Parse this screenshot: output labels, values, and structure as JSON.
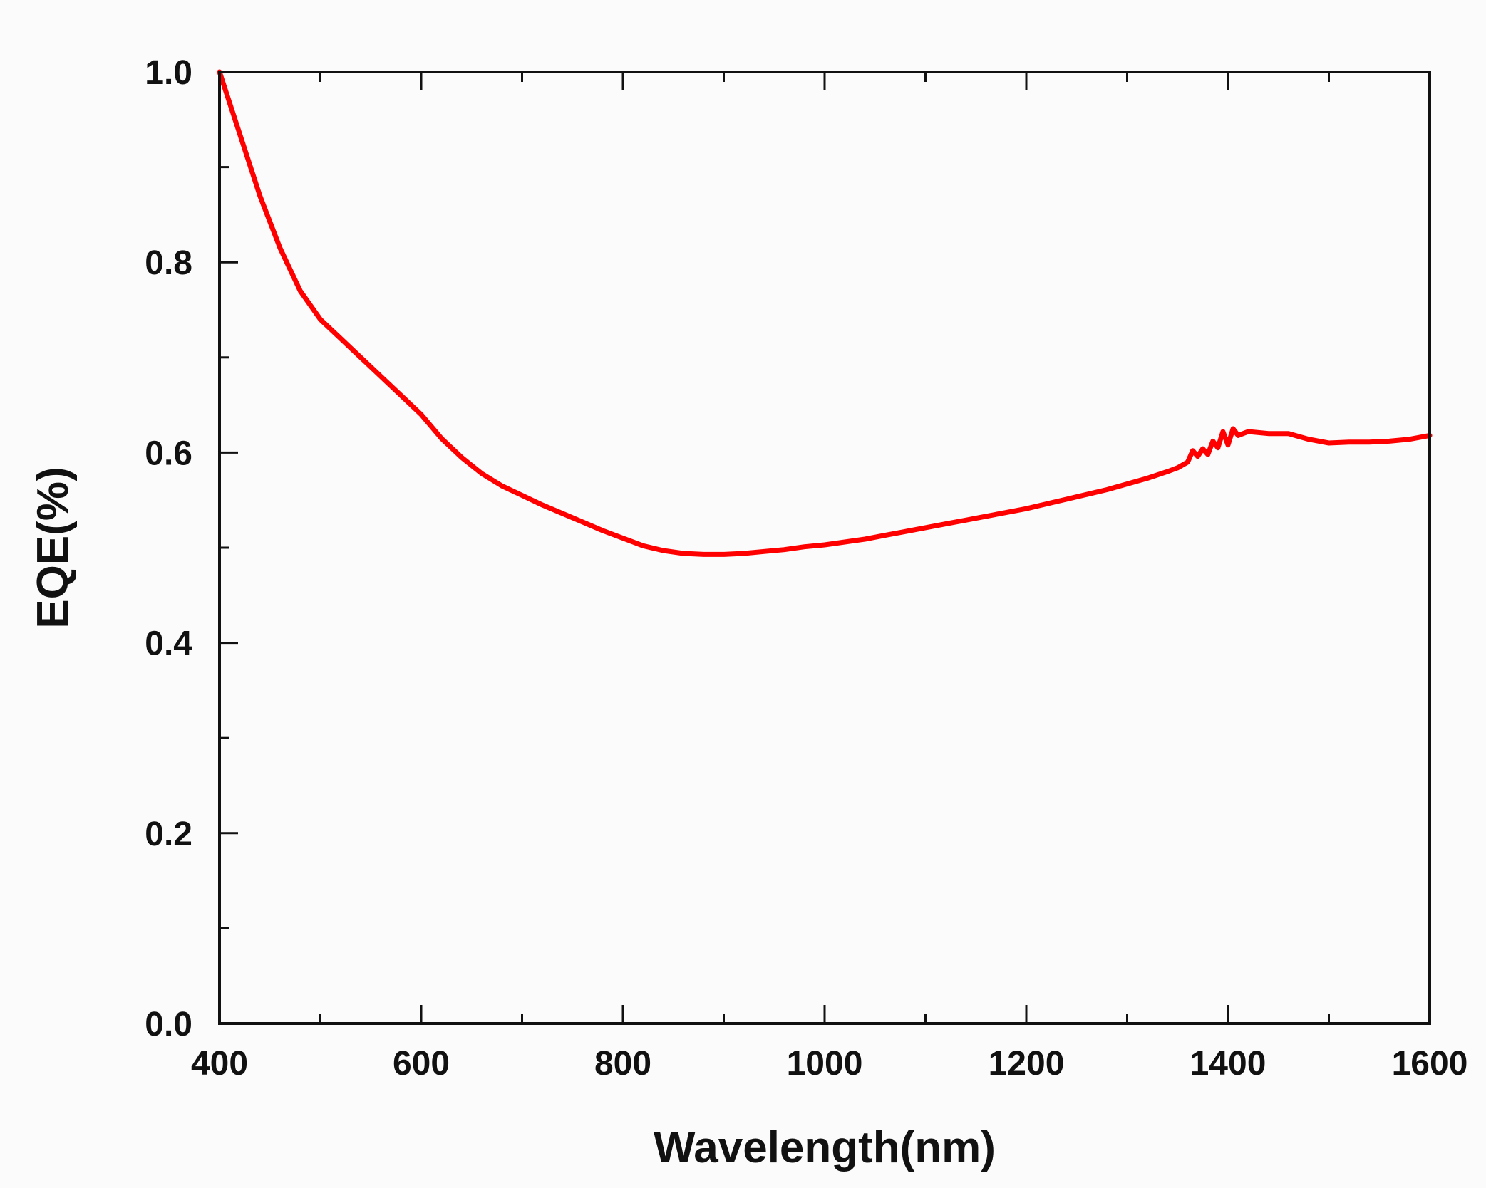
{
  "chart_data": {
    "type": "line",
    "title": "",
    "xlabel": "Wavelength(nm)",
    "ylabel": "EQE(%)",
    "xlim": [
      400,
      1600
    ],
    "ylim": [
      0.0,
      1.0
    ],
    "x_ticks": [
      400,
      600,
      800,
      1000,
      1200,
      1400,
      1600
    ],
    "x_tick_labels": [
      "400",
      "600",
      "800",
      "1000",
      "1200",
      "1400",
      "1600"
    ],
    "y_ticks": [
      0.0,
      0.2,
      0.4,
      0.6,
      0.8,
      1.0
    ],
    "y_tick_labels": [
      "0.0",
      "0.2",
      "0.4",
      "0.6",
      "0.8",
      "1.0"
    ],
    "x_minor_step": 100,
    "y_minor_step": 0.1,
    "grid": false,
    "legend": "none",
    "series": [
      {
        "color": "#ff0000",
        "x": [
          400,
          420,
          440,
          460,
          480,
          500,
          520,
          540,
          560,
          580,
          600,
          620,
          640,
          660,
          680,
          700,
          720,
          740,
          760,
          780,
          800,
          820,
          840,
          860,
          880,
          900,
          920,
          940,
          960,
          980,
          1000,
          1020,
          1040,
          1060,
          1080,
          1100,
          1120,
          1140,
          1160,
          1180,
          1200,
          1220,
          1240,
          1260,
          1280,
          1300,
          1320,
          1340,
          1350,
          1360,
          1365,
          1370,
          1375,
          1380,
          1385,
          1390,
          1395,
          1400,
          1405,
          1410,
          1420,
          1440,
          1460,
          1480,
          1500,
          1520,
          1540,
          1560,
          1580,
          1600
        ],
        "y": [
          1.0,
          0.935,
          0.87,
          0.815,
          0.77,
          0.74,
          0.72,
          0.7,
          0.68,
          0.66,
          0.64,
          0.615,
          0.595,
          0.578,
          0.565,
          0.555,
          0.545,
          0.536,
          0.527,
          0.518,
          0.51,
          0.502,
          0.497,
          0.494,
          0.493,
          0.493,
          0.494,
          0.496,
          0.498,
          0.501,
          0.503,
          0.506,
          0.509,
          0.513,
          0.517,
          0.521,
          0.525,
          0.529,
          0.533,
          0.537,
          0.541,
          0.546,
          0.551,
          0.556,
          0.561,
          0.567,
          0.573,
          0.58,
          0.584,
          0.59,
          0.602,
          0.596,
          0.604,
          0.598,
          0.612,
          0.605,
          0.622,
          0.608,
          0.625,
          0.618,
          0.622,
          0.62,
          0.62,
          0.614,
          0.61,
          0.611,
          0.611,
          0.612,
          0.614,
          0.618
        ]
      }
    ]
  }
}
